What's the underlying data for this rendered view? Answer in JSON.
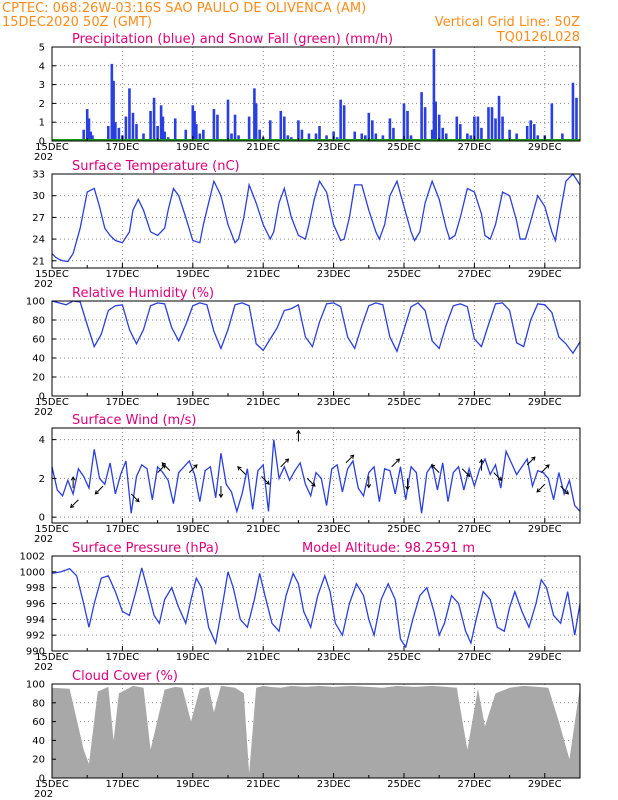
{
  "header": {
    "line1": "CPTEC:   068:26W-03:16S  SAO PAULO DE OLIVENCA (AM)",
    "line2": "15DEC2020 50Z (GMT)",
    "grid_note": "Vertical Grid Line: 50Z",
    "code": "TQ0126L028"
  },
  "colors": {
    "header": "#ff8c1a",
    "title": "#e0007a",
    "line": "#2a3fe0",
    "snow": "#1a9a1a",
    "cloud": "#a8a8a8",
    "grid": "#8a8a8a"
  },
  "x_axis_labels": [
    "15DEC",
    "17DEC",
    "19DEC",
    "21DEC",
    "23DEC",
    "25DEC",
    "27DEC",
    "29DEC"
  ],
  "x_axis_stub": "202",
  "chart_data": [
    {
      "type": "bar",
      "title": "Precipitation (blue) and Snow Fall (green) (mm/h)",
      "ylim": [
        0,
        5
      ],
      "yticks": [
        0,
        1,
        2,
        3,
        4,
        5
      ],
      "x_days": [
        0.1,
        0.3,
        0.9,
        1.0,
        1.05,
        1.1,
        1.15,
        1.6,
        1.7,
        1.75,
        1.8,
        1.9,
        2.0,
        2.1,
        2.2,
        2.3,
        2.4,
        2.6,
        2.8,
        2.9,
        3.0,
        3.1,
        3.15,
        3.2,
        3.3,
        3.5,
        3.8,
        4.0,
        4.05,
        4.1,
        4.2,
        4.3,
        4.6,
        4.7,
        5.0,
        5.1,
        5.2,
        5.3,
        5.6,
        5.75,
        5.8,
        5.9,
        6.0,
        6.2,
        6.5,
        6.6,
        6.7,
        6.8,
        7.0,
        7.1,
        7.3,
        7.5,
        7.6,
        7.8,
        8.0,
        8.1,
        8.2,
        8.3,
        8.6,
        8.8,
        8.9,
        9.0,
        9.1,
        9.2,
        9.4,
        9.6,
        9.7,
        10.0,
        10.1,
        10.2,
        10.5,
        10.6,
        10.8,
        10.85,
        10.9,
        11.0,
        11.1,
        11.2,
        11.5,
        11.6,
        11.8,
        11.9,
        12.0,
        12.1,
        12.2,
        12.4,
        12.5,
        12.6,
        12.7,
        12.8,
        13.0,
        13.2,
        13.5,
        13.6,
        13.7,
        13.8,
        14.0,
        14.2,
        14.5,
        14.8,
        14.9
      ],
      "values": [
        0.1,
        0.1,
        0.6,
        1.7,
        1.2,
        0.5,
        0.3,
        0.8,
        4.1,
        3.2,
        1.0,
        0.7,
        0.3,
        1.3,
        2.8,
        1.5,
        0.9,
        0.4,
        1.6,
        2.3,
        0.8,
        1.9,
        1.3,
        0.5,
        0.2,
        1.2,
        0.6,
        1.9,
        1.6,
        0.9,
        0.4,
        0.6,
        1.7,
        1.4,
        2.2,
        0.4,
        1.4,
        0.3,
        1.3,
        2.8,
        2.0,
        0.6,
        0.2,
        1.1,
        1.6,
        1.3,
        0.3,
        0.2,
        1.1,
        0.6,
        0.4,
        0.4,
        0.8,
        0.3,
        0.5,
        0.2,
        2.2,
        1.9,
        0.5,
        0.4,
        0.3,
        1.5,
        1.1,
        0.4,
        0.3,
        1.2,
        0.7,
        2.0,
        1.6,
        0.3,
        2.6,
        1.8,
        0.6,
        4.9,
        2.1,
        1.4,
        0.7,
        0.4,
        1.3,
        0.9,
        0.4,
        0.3,
        1.3,
        1.3,
        0.7,
        1.8,
        1.8,
        1.2,
        2.4,
        1.3,
        0.6,
        0.4,
        0.8,
        1.1,
        0.9,
        0.3,
        0.3,
        2.0,
        0.4,
        3.1,
        2.3
      ],
      "snow": 0
    },
    {
      "type": "line",
      "title": "Surface Temperature (nC)",
      "ylim": [
        20,
        33
      ],
      "yticks": [
        21,
        24,
        27,
        30,
        33
      ],
      "x_days": [
        0,
        0.1,
        0.2,
        0.3,
        0.45,
        0.6,
        0.8,
        1.0,
        1.2,
        1.35,
        1.5,
        1.65,
        1.8,
        2.0,
        2.2,
        2.3,
        2.45,
        2.6,
        2.8,
        3.0,
        3.2,
        3.3,
        3.45,
        3.6,
        3.8,
        4.0,
        4.2,
        4.3,
        4.45,
        4.6,
        4.8,
        5.0,
        5.2,
        5.3,
        5.45,
        5.6,
        5.8,
        6.0,
        6.2,
        6.3,
        6.45,
        6.6,
        6.8,
        7.0,
        7.2,
        7.3,
        7.45,
        7.6,
        7.8,
        8.0,
        8.2,
        8.3,
        8.45,
        8.6,
        8.8,
        9.0,
        9.2,
        9.3,
        9.45,
        9.6,
        9.8,
        10.0,
        10.2,
        10.3,
        10.45,
        10.6,
        10.8,
        11.0,
        11.2,
        11.3,
        11.45,
        11.6,
        11.8,
        12.0,
        12.2,
        12.3,
        12.45,
        12.6,
        12.8,
        13.0,
        13.2,
        13.3,
        13.45,
        13.6,
        13.8,
        14.0,
        14.2,
        14.3,
        14.45,
        14.6,
        14.8,
        15.0
      ],
      "values": [
        22.0,
        21.5,
        21.2,
        21.0,
        20.9,
        22.0,
        25.5,
        30.5,
        31.0,
        28.5,
        25.5,
        24.5,
        23.8,
        23.5,
        25.0,
        28.0,
        29.5,
        28.0,
        25.0,
        24.5,
        25.5,
        28.0,
        31.0,
        30.0,
        27.0,
        23.8,
        23.5,
        26.0,
        29.0,
        32.0,
        30.0,
        26.0,
        23.5,
        24.0,
        27.0,
        31.5,
        29.0,
        26.0,
        24.0,
        25.0,
        29.0,
        31.0,
        27.0,
        24.5,
        24.0,
        26.0,
        29.5,
        32.0,
        30.5,
        26.0,
        23.8,
        24.0,
        27.0,
        31.5,
        31.5,
        28.0,
        25.0,
        24.0,
        26.0,
        30.0,
        32.0,
        28.5,
        25.0,
        23.8,
        25.0,
        29.0,
        32.0,
        29.5,
        25.5,
        24.0,
        24.5,
        27.0,
        31.0,
        30.5,
        27.5,
        24.5,
        24.0,
        26.0,
        30.5,
        30.0,
        26.5,
        24.0,
        24.0,
        26.5,
        30.0,
        28.5,
        25.0,
        23.8,
        28.0,
        32.0,
        33.0,
        31.5
      ]
    },
    {
      "type": "line",
      "title": "Relative Humidity (%)",
      "ylim": [
        0,
        100
      ],
      "yticks": [
        0,
        20,
        40,
        60,
        80,
        100
      ],
      "x_days": [
        0,
        0.2,
        0.4,
        0.6,
        0.8,
        1.0,
        1.2,
        1.4,
        1.6,
        1.8,
        2.0,
        2.2,
        2.4,
        2.6,
        2.8,
        3.0,
        3.2,
        3.4,
        3.6,
        3.8,
        4.0,
        4.2,
        4.4,
        4.6,
        4.8,
        5.0,
        5.2,
        5.4,
        5.6,
        5.8,
        6.0,
        6.2,
        6.4,
        6.6,
        6.8,
        7.0,
        7.2,
        7.4,
        7.6,
        7.8,
        8.0,
        8.2,
        8.4,
        8.6,
        8.8,
        9.0,
        9.2,
        9.4,
        9.6,
        9.8,
        10.0,
        10.2,
        10.4,
        10.6,
        10.8,
        11.0,
        11.2,
        11.4,
        11.6,
        11.8,
        12.0,
        12.2,
        12.4,
        12.6,
        12.8,
        13.0,
        13.2,
        13.4,
        13.6,
        13.8,
        14.0,
        14.2,
        14.4,
        14.6,
        14.8,
        15.0
      ],
      "values": [
        100,
        98,
        96,
        100,
        99,
        75,
        52,
        65,
        90,
        95,
        96,
        70,
        55,
        70,
        95,
        98,
        97,
        72,
        58,
        75,
        95,
        98,
        96,
        68,
        50,
        70,
        96,
        98,
        95,
        55,
        48,
        60,
        72,
        90,
        92,
        96,
        62,
        52,
        78,
        97,
        98,
        94,
        62,
        50,
        74,
        95,
        98,
        96,
        62,
        47,
        70,
        94,
        98,
        90,
        58,
        50,
        75,
        95,
        97,
        94,
        60,
        52,
        75,
        97,
        98,
        90,
        56,
        52,
        80,
        97,
        96,
        88,
        62,
        55,
        45,
        57
      ]
    },
    {
      "type": "line",
      "title": "Surface Wind (m/s)",
      "ylim": [
        -0.3,
        4.6
      ],
      "yticks": [
        0,
        2,
        4
      ],
      "x_days": [
        0,
        0.15,
        0.3,
        0.45,
        0.6,
        0.75,
        0.9,
        1.05,
        1.2,
        1.35,
        1.5,
        1.65,
        1.8,
        1.95,
        2.1,
        2.25,
        2.4,
        2.55,
        2.7,
        2.85,
        3.0,
        3.15,
        3.3,
        3.45,
        3.6,
        3.75,
        3.9,
        4.05,
        4.2,
        4.35,
        4.5,
        4.65,
        4.8,
        4.95,
        5.1,
        5.25,
        5.4,
        5.55,
        5.7,
        5.85,
        6.0,
        6.15,
        6.3,
        6.45,
        6.6,
        6.75,
        6.9,
        7.05,
        7.2,
        7.35,
        7.5,
        7.65,
        7.8,
        7.95,
        8.1,
        8.25,
        8.4,
        8.55,
        8.7,
        8.85,
        9.0,
        9.15,
        9.3,
        9.45,
        9.6,
        9.75,
        9.9,
        10.05,
        10.2,
        10.35,
        10.5,
        10.65,
        10.8,
        10.95,
        11.1,
        11.25,
        11.4,
        11.55,
        11.7,
        11.85,
        12.0,
        12.15,
        12.3,
        12.45,
        12.6,
        12.75,
        12.9,
        13.05,
        13.2,
        13.35,
        13.5,
        13.65,
        13.8,
        13.95,
        14.1,
        14.25,
        14.4,
        14.55,
        14.7,
        14.85,
        15.0
      ],
      "values": [
        2.6,
        1.4,
        1.1,
        1.9,
        1.2,
        2.5,
        2.1,
        1.5,
        3.5,
        2.0,
        1.7,
        2.8,
        1.2,
        2.2,
        2.9,
        0.2,
        2.1,
        2.7,
        2.5,
        0.9,
        2.6,
        2.3,
        1.9,
        0.7,
        2.3,
        2.6,
        2.9,
        2.2,
        0.8,
        2.4,
        2.6,
        1.0,
        3.3,
        1.7,
        1.3,
        0.3,
        1.2,
        2.5,
        0.4,
        2.4,
        2.7,
        0.3,
        4.0,
        2.0,
        2.6,
        1.9,
        2.4,
        2.8,
        1.7,
        1.1,
        2.3,
        2.0,
        0.6,
        2.5,
        2.7,
        1.3,
        2.5,
        2.9,
        1.5,
        1.1,
        2.3,
        2.6,
        0.8,
        2.5,
        2.4,
        1.2,
        2.6,
        0.9,
        2.6,
        2.3,
        0.2,
        2.3,
        2.7,
        1.4,
        2.8,
        0.8,
        2.3,
        2.6,
        1.4,
        2.5,
        1.6,
        2.5,
        3.0,
        2.2,
        2.7,
        1.5,
        3.4,
        2.8,
        2.2,
        2.6,
        3.0,
        1.6,
        2.4,
        2.3,
        2.0,
        0.9,
        2.3,
        1.2,
        1.9,
        0.6,
        0.3
      ],
      "arrows": [
        {
          "x": 0.6,
          "speed": 1.5,
          "dir": "N"
        },
        {
          "x": 0.75,
          "speed": 0.9,
          "dir": "SW"
        },
        {
          "x": 1.45,
          "speed": 1.6,
          "dir": "SW"
        },
        {
          "x": 2.25,
          "speed": 1.2,
          "dir": "SE"
        },
        {
          "x": 3.0,
          "speed": 2.3,
          "dir": "NE"
        },
        {
          "x": 3.35,
          "speed": 2.4,
          "dir": "NW"
        },
        {
          "x": 3.9,
          "speed": 2.3,
          "dir": "NE"
        },
        {
          "x": 4.8,
          "speed": 1.6,
          "dir": "S"
        },
        {
          "x": 5.5,
          "speed": 2.2,
          "dir": "NW"
        },
        {
          "x": 5.95,
          "speed": 2.1,
          "dir": "SE"
        },
        {
          "x": 6.5,
          "speed": 2.6,
          "dir": "NE"
        },
        {
          "x": 7.0,
          "speed": 3.9,
          "dir": "N"
        },
        {
          "x": 7.25,
          "speed": 2.0,
          "dir": "SE"
        },
        {
          "x": 8.35,
          "speed": 2.8,
          "dir": "NE"
        },
        {
          "x": 9.0,
          "speed": 2.1,
          "dir": "S"
        },
        {
          "x": 9.65,
          "speed": 2.6,
          "dir": "NE"
        },
        {
          "x": 10.1,
          "speed": 2.0,
          "dir": "S"
        },
        {
          "x": 11.0,
          "speed": 2.3,
          "dir": "NW"
        },
        {
          "x": 11.65,
          "speed": 2.5,
          "dir": "SE"
        },
        {
          "x": 12.2,
          "speed": 2.4,
          "dir": "N"
        },
        {
          "x": 12.55,
          "speed": 2.3,
          "dir": "SE"
        },
        {
          "x": 13.5,
          "speed": 2.7,
          "dir": "NE"
        },
        {
          "x": 13.9,
          "speed": 2.3,
          "dir": "NE"
        },
        {
          "x": 14.0,
          "speed": 1.7,
          "dir": "SW"
        },
        {
          "x": 14.45,
          "speed": 1.6,
          "dir": "SE"
        }
      ]
    },
    {
      "type": "line",
      "title": "Surface Pressure (hPa)",
      "subtitle": "Model Altitude: 98.2591  m",
      "ylim": [
        990,
        1002
      ],
      "yticks": [
        990,
        992,
        994,
        996,
        998,
        1000,
        1002
      ],
      "x_days": [
        0,
        0.25,
        0.5,
        0.7,
        0.9,
        1.05,
        1.2,
        1.4,
        1.6,
        1.8,
        2.0,
        2.2,
        2.4,
        2.55,
        2.7,
        2.9,
        3.05,
        3.2,
        3.4,
        3.6,
        3.8,
        3.95,
        4.1,
        4.25,
        4.45,
        4.65,
        4.85,
        5.0,
        5.15,
        5.35,
        5.55,
        5.75,
        5.9,
        6.05,
        6.25,
        6.45,
        6.65,
        6.85,
        7.0,
        7.15,
        7.35,
        7.55,
        7.75,
        7.9,
        8.05,
        8.25,
        8.45,
        8.65,
        8.85,
        9.0,
        9.15,
        9.35,
        9.55,
        9.75,
        9.9,
        10.05,
        10.25,
        10.45,
        10.65,
        10.85,
        11.0,
        11.15,
        11.35,
        11.55,
        11.75,
        11.9,
        12.05,
        12.25,
        12.45,
        12.65,
        12.85,
        13.0,
        13.15,
        13.35,
        13.55,
        13.75,
        13.9,
        14.05,
        14.25,
        14.45,
        14.65,
        14.85,
        15.0
      ],
      "values": [
        999.8,
        1000.0,
        1000.4,
        999.5,
        996.0,
        993.0,
        996.0,
        999.2,
        999.5,
        997.5,
        995.0,
        994.5,
        997.8,
        1000.5,
        998.0,
        994.5,
        993.5,
        996.5,
        998.0,
        995.5,
        993.5,
        996.5,
        999.2,
        998.0,
        993.0,
        991.0,
        996.0,
        1000.0,
        998.0,
        994.0,
        993.0,
        996.5,
        999.8,
        997.0,
        993.5,
        992.5,
        997.0,
        999.8,
        998.5,
        995.0,
        993.0,
        997.0,
        999.5,
        997.5,
        993.5,
        992.0,
        996.0,
        998.5,
        997.0,
        994.0,
        992.0,
        996.5,
        998.5,
        996.5,
        991.5,
        990.5,
        994.0,
        997.0,
        998.0,
        995.0,
        992.0,
        993.5,
        997.0,
        996.0,
        992.5,
        991.0,
        994.0,
        997.5,
        996.5,
        993.0,
        992.5,
        995.5,
        997.5,
        995.0,
        993.0,
        996.0,
        999.0,
        998.0,
        994.5,
        993.5,
        997.5,
        992.0,
        996.0
      ]
    },
    {
      "type": "area",
      "title": "Cloud Cover (%)",
      "ylim": [
        0,
        100
      ],
      "yticks": [
        0,
        20,
        40,
        60,
        80,
        100
      ],
      "x_days": [
        0,
        0.5,
        0.9,
        1.05,
        1.3,
        1.6,
        1.75,
        1.9,
        2.3,
        2.6,
        2.8,
        3.2,
        3.5,
        3.7,
        3.95,
        4.2,
        4.45,
        4.6,
        4.8,
        5.2,
        5.45,
        5.6,
        5.8,
        6.0,
        6.2,
        6.5,
        6.8,
        7.2,
        7.6,
        8.0,
        8.5,
        9.0,
        9.4,
        9.8,
        10.3,
        10.8,
        11.2,
        11.5,
        11.8,
        12.1,
        12.3,
        12.6,
        13.0,
        13.4,
        13.8,
        14.1,
        14.4,
        14.7,
        15.0
      ],
      "values": [
        96,
        95,
        30,
        15,
        92,
        97,
        40,
        90,
        98,
        96,
        30,
        94,
        97,
        96,
        60,
        95,
        97,
        70,
        98,
        96,
        90,
        5,
        96,
        98,
        97,
        96,
        98,
        97,
        98,
        97,
        98,
        97,
        96,
        98,
        97,
        98,
        97,
        96,
        30,
        95,
        55,
        90,
        96,
        98,
        97,
        96,
        60,
        20,
        97
      ]
    }
  ]
}
